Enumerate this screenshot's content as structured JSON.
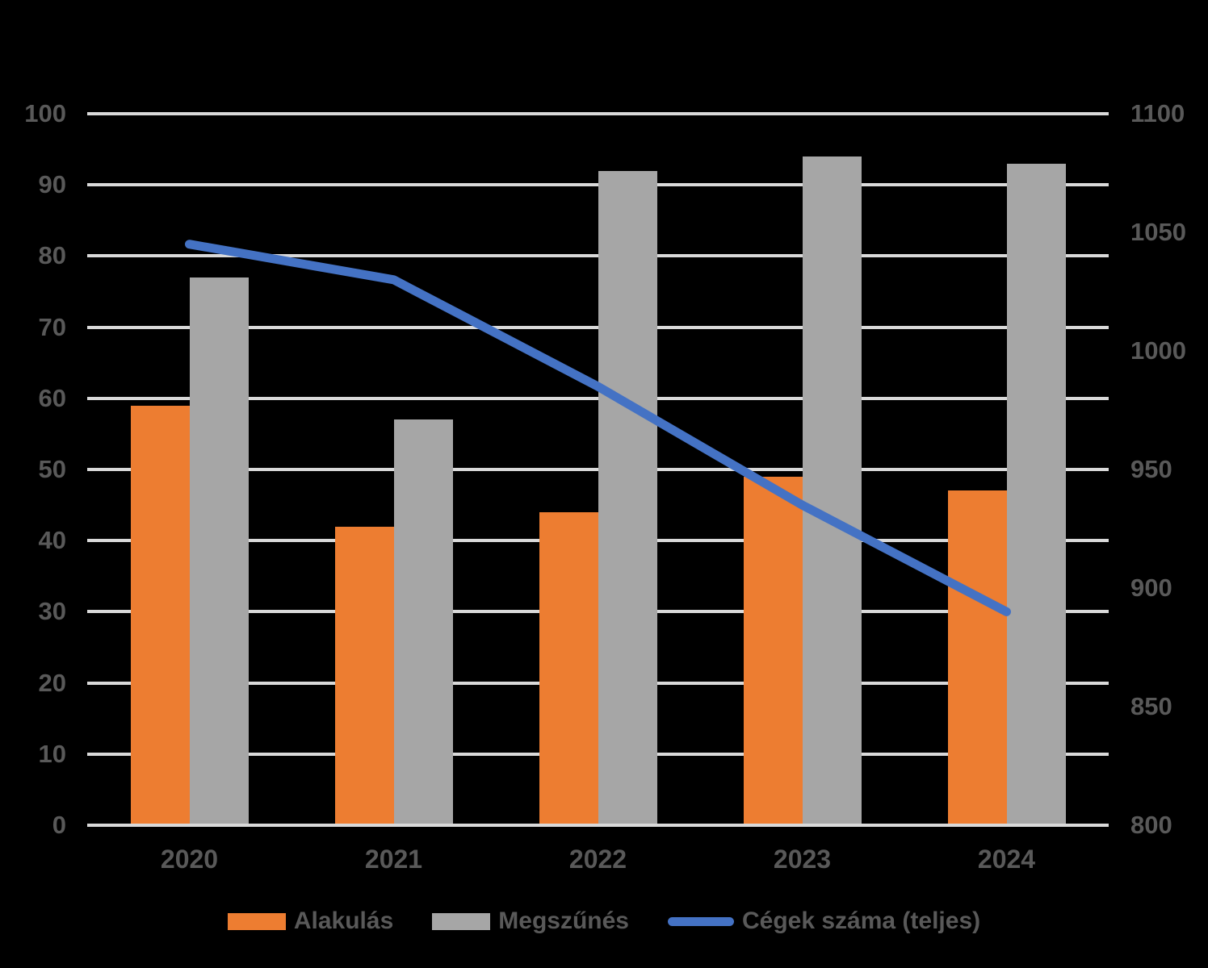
{
  "chart_data": {
    "type": "combo",
    "title": "",
    "categories": [
      "2020",
      "2021",
      "2022",
      "2023",
      "2024"
    ],
    "series": [
      {
        "name": "Alakulás",
        "type": "bar",
        "axis": "left",
        "color": "#ED7D31",
        "values": [
          59,
          42,
          44,
          49,
          47
        ]
      },
      {
        "name": "Megszűnés",
        "type": "bar",
        "axis": "left",
        "color": "#A6A6A6",
        "values": [
          77,
          57,
          92,
          94,
          93
        ]
      },
      {
        "name": "Cégek száma (teljes)",
        "type": "line",
        "axis": "right",
        "color": "#4472C4",
        "values": [
          1045,
          1030,
          985,
          935,
          890
        ]
      }
    ],
    "left_axis": {
      "min": 0,
      "max": 100,
      "step": 10,
      "tick_labels": [
        "0",
        "10",
        "20",
        "30",
        "40",
        "50",
        "60",
        "70",
        "80",
        "90",
        "100"
      ]
    },
    "right_axis": {
      "min": 800,
      "max": 1100,
      "step": 50,
      "tick_labels": [
        "800",
        "850",
        "900",
        "950",
        "1000",
        "1050",
        "1100"
      ]
    },
    "grid": "horizontal",
    "legend_position": "bottom",
    "colors": {
      "background": "#000000",
      "gridline": "#D9D9D9",
      "label_text": "#595959"
    }
  }
}
